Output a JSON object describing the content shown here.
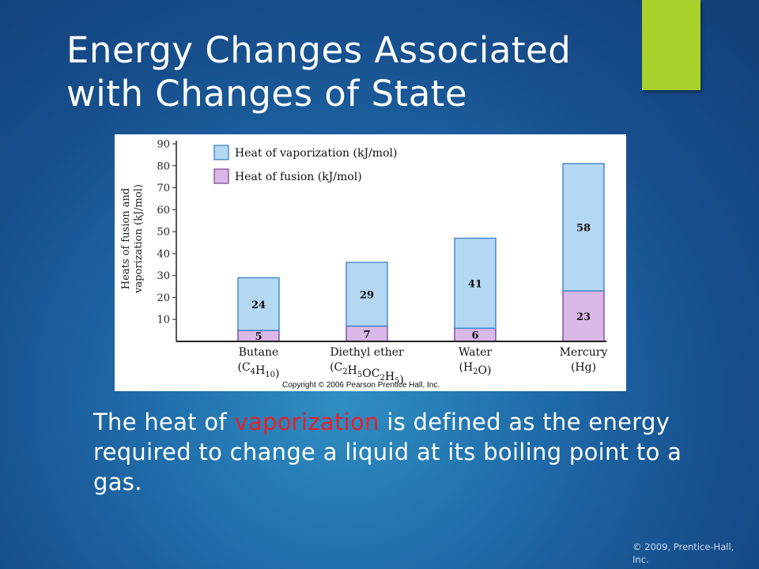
{
  "slide": {
    "title_line1": "Energy Changes Associated",
    "title_line2": "with Changes of State",
    "body": {
      "pre": "The heat of ",
      "highlight": "vaporization",
      "post": " is defined as the energy required to change a liquid at its boiling point to a gas."
    },
    "footer": "© 2009, Prentice-Hall, Inc.",
    "colors": {
      "accent": "#a8d12b",
      "highlight": "#e8212b"
    }
  },
  "chart_data": {
    "type": "bar",
    "stacked": true,
    "title": "",
    "ylabel_line1": "Heats of fusion and",
    "ylabel_line2": "vaporization (kJ/mol)",
    "ylim": [
      0,
      90
    ],
    "yticks": [
      10,
      20,
      30,
      40,
      50,
      60,
      70,
      80,
      90
    ],
    "categories": [
      {
        "name": "Butane",
        "formula": [
          [
            "(C",
            ""
          ],
          [
            "4",
            "sub"
          ],
          [
            "H",
            ""
          ],
          [
            "10",
            "sub"
          ],
          [
            ")",
            ""
          ]
        ]
      },
      {
        "name": "Diethyl ether",
        "formula": [
          [
            "(C",
            ""
          ],
          [
            "2",
            "sub"
          ],
          [
            "H",
            ""
          ],
          [
            "5",
            "sub"
          ],
          [
            "OC",
            ""
          ],
          [
            "2",
            "sub"
          ],
          [
            "H",
            ""
          ],
          [
            "5",
            "sub"
          ],
          [
            ")",
            ""
          ]
        ]
      },
      {
        "name": "Water",
        "formula": [
          [
            "(H",
            ""
          ],
          [
            "2",
            "sub"
          ],
          [
            "O)",
            ""
          ]
        ]
      },
      {
        "name": "Mercury",
        "formula": [
          [
            "(Hg)",
            ""
          ]
        ]
      }
    ],
    "series": [
      {
        "name": "Heat of fusion (kJ/mol)",
        "values": [
          5,
          7,
          6,
          23
        ],
        "color": "#d9b7e6",
        "edge": "#7e4d97"
      },
      {
        "name": "Heat of vaporization (kJ/mol)",
        "values": [
          24,
          29,
          41,
          58
        ],
        "color": "#b4d7f2",
        "edge": "#3f84c6"
      }
    ],
    "legend_order": [
      1,
      0
    ],
    "legend_position": "top-left",
    "copyright": "Copyright © 2006 Pearson Prentice Hall, Inc."
  }
}
